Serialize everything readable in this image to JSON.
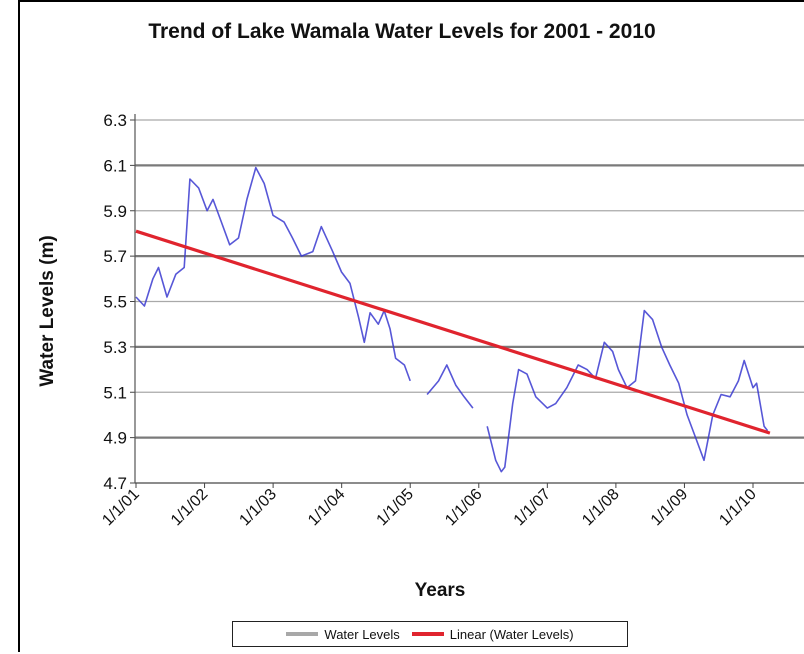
{
  "chart_data": {
    "type": "line",
    "title": "Trend of Lake Wamala Water Levels for 2001 - 2010",
    "xlabel": "Years",
    "ylabel": "Water Levels (m)",
    "ylim": [
      4.7,
      6.3
    ],
    "yticks": [
      "6.3",
      "6.1",
      "5.9",
      "5.7",
      "5.5",
      "5.3",
      "5.1",
      "4.9",
      "4.7"
    ],
    "xticks": [
      "1/1/01",
      "1/1/02",
      "1/1/03",
      "1/1/04",
      "1/1/05",
      "1/1/06",
      "1/1/07",
      "1/1/08",
      "1/1/09",
      "1/1/10"
    ],
    "grid": true,
    "legend_position": "bottom",
    "series": [
      {
        "name": "Water Levels",
        "color": "#3a3ad0",
        "points": [
          [
            "2001-01-01",
            5.52
          ],
          [
            "2001-02-15",
            5.48
          ],
          [
            "2001-04-01",
            5.6
          ],
          [
            "2001-05-01",
            5.65
          ],
          [
            "2001-06-15",
            5.52
          ],
          [
            "2001-08-01",
            5.62
          ],
          [
            "2001-09-15",
            5.65
          ],
          [
            "2001-10-15",
            6.04
          ],
          [
            "2001-12-01",
            6.0
          ],
          [
            "2002-01-15",
            5.9
          ],
          [
            "2002-02-15",
            5.95
          ],
          [
            "2002-04-01",
            5.85
          ],
          [
            "2002-05-15",
            5.75
          ],
          [
            "2002-07-01",
            5.78
          ],
          [
            "2002-08-15",
            5.95
          ],
          [
            "2002-10-01",
            6.09
          ],
          [
            "2002-11-15",
            6.02
          ],
          [
            "2003-01-01",
            5.88
          ],
          [
            "2003-03-01",
            5.85
          ],
          [
            "2003-04-15",
            5.78
          ],
          [
            "2003-06-01",
            5.7
          ],
          [
            "2003-08-01",
            5.72
          ],
          [
            "2003-09-15",
            5.83
          ],
          [
            "2003-11-15",
            5.72
          ],
          [
            "2004-01-01",
            5.63
          ],
          [
            "2004-02-15",
            5.58
          ],
          [
            "2004-04-01",
            5.43
          ],
          [
            "2004-05-01",
            5.32
          ],
          [
            "2004-06-01",
            5.45
          ],
          [
            "2004-07-15",
            5.4
          ],
          [
            "2004-08-15",
            5.46
          ],
          [
            "2004-09-15",
            5.38
          ],
          [
            "2004-10-15",
            5.25
          ],
          [
            "2004-12-01",
            5.22
          ],
          [
            "2005-01-01",
            5.15
          ],
          [
            "2005-02-15",
            null
          ],
          [
            "2005-04-01",
            5.09
          ],
          [
            "2005-06-01",
            5.15
          ],
          [
            "2005-07-15",
            5.22
          ],
          [
            "2005-09-01",
            5.13
          ],
          [
            "2005-10-15",
            5.08
          ],
          [
            "2005-12-01",
            5.03
          ],
          [
            "2006-01-15",
            null
          ],
          [
            "2006-02-15",
            4.95
          ],
          [
            "2006-04-01",
            4.8
          ],
          [
            "2006-05-01",
            4.75
          ],
          [
            "2006-05-20",
            4.77
          ],
          [
            "2006-07-01",
            5.05
          ],
          [
            "2006-08-01",
            5.2
          ],
          [
            "2006-09-15",
            5.18
          ],
          [
            "2006-11-01",
            5.08
          ],
          [
            "2007-01-01",
            5.03
          ],
          [
            "2007-02-15",
            5.05
          ],
          [
            "2007-04-15",
            5.12
          ],
          [
            "2007-06-15",
            5.22
          ],
          [
            "2007-08-01",
            5.2
          ],
          [
            "2007-09-15",
            5.16
          ],
          [
            "2007-11-01",
            5.32
          ],
          [
            "2007-12-15",
            5.28
          ],
          [
            "2008-01-15",
            5.2
          ],
          [
            "2008-03-01",
            5.12
          ],
          [
            "2008-04-15",
            5.15
          ],
          [
            "2008-06-01",
            5.46
          ],
          [
            "2008-07-15",
            5.42
          ],
          [
            "2008-09-01",
            5.3
          ],
          [
            "2008-10-15",
            5.22
          ],
          [
            "2008-12-01",
            5.14
          ],
          [
            "2009-01-15",
            5.0
          ],
          [
            "2009-03-01",
            4.9
          ],
          [
            "2009-04-15",
            4.8
          ],
          [
            "2009-06-01",
            5.0
          ],
          [
            "2009-07-15",
            5.09
          ],
          [
            "2009-09-01",
            5.08
          ],
          [
            "2009-10-15",
            5.15
          ],
          [
            "2009-11-15",
            5.24
          ],
          [
            "2010-01-01",
            5.12
          ],
          [
            "2010-01-20",
            5.14
          ],
          [
            "2010-03-01",
            4.95
          ],
          [
            "2010-03-20",
            4.93
          ]
        ]
      },
      {
        "name": "Linear (Water Levels)",
        "color": "#e0242e",
        "points": [
          [
            "2001-01-01",
            5.81
          ],
          [
            "2010-04-01",
            4.92
          ]
        ]
      }
    ]
  }
}
